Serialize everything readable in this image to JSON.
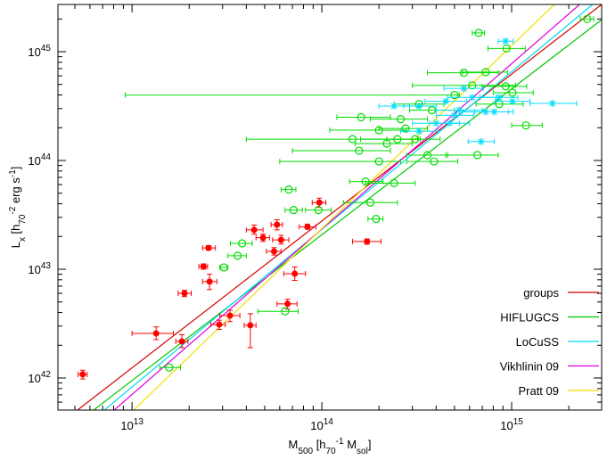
{
  "chart_data": {
    "type": "scatter",
    "x_label": [
      {
        "text": "M"
      },
      {
        "text": "500",
        "shift": "sub"
      },
      {
        "text": " [h"
      },
      {
        "text": "70",
        "shift": "sub"
      },
      {
        "text": "-1",
        "shift": "super"
      },
      {
        "text": " M"
      },
      {
        "text": "sol",
        "shift": "sub"
      },
      {
        "text": "]"
      }
    ],
    "y_label": [
      {
        "text": "L"
      },
      {
        "text": "x",
        "shift": "sub"
      },
      {
        "text": " [h"
      },
      {
        "text": "70",
        "shift": "sub"
      },
      {
        "text": "-2",
        "shift": "super"
      },
      {
        "text": " erg s"
      },
      {
        "text": "-1",
        "shift": "super"
      },
      {
        "text": "]"
      }
    ],
    "xlog": true,
    "ylog": true,
    "xlim": [
      4070000000000.0,
      2980000000000000.0
    ],
    "ylim": [
      5.07e+41,
      2.72e+45
    ],
    "xticks": [
      {
        "value": 10000000000000.0,
        "label": "10",
        "exponent": "13"
      },
      {
        "value": 100000000000000.0,
        "label": "10",
        "exponent": "14"
      },
      {
        "value": 1000000000000000.0,
        "label": "10",
        "exponent": "15"
      }
    ],
    "yticks": [
      {
        "value": 1e+42,
        "label": "10",
        "exponent": "42"
      },
      {
        "value": 1e+43,
        "label": "10",
        "exponent": "43"
      },
      {
        "value": 1e+44,
        "label": "10",
        "exponent": "44"
      },
      {
        "value": 1e+45,
        "label": "10",
        "exponent": "45"
      }
    ],
    "xminor_ticks": [
      5000000000000.0,
      6000000000000.0,
      7000000000000.0,
      8000000000000.0,
      9000000000000.0,
      20000000000000.0,
      30000000000000.0,
      40000000000000.0,
      50000000000000.0,
      60000000000000.0,
      70000000000000.0,
      80000000000000.0,
      90000000000000.0,
      200000000000000.0,
      300000000000000.0,
      400000000000000.0,
      500000000000000.0,
      600000000000000.0,
      700000000000000.0,
      800000000000000.0,
      900000000000000.0,
      2000000000000000.0
    ],
    "yminor_ticks": [
      6e+41,
      7e+41,
      8e+41,
      9e+41,
      2e+42,
      3e+42,
      4e+42,
      5e+42,
      6e+42,
      7e+42,
      8e+42,
      9e+42,
      2e+43,
      3e+43,
      4e+43,
      5e+43,
      6e+43,
      7e+43,
      8e+43,
      9e+43,
      2e+44,
      3e+44,
      4e+44,
      5e+44,
      6e+44,
      7e+44,
      8e+44,
      9e+44,
      2e+45
    ],
    "legend": "lower right",
    "samples": [
      {
        "color": "#ff0000",
        "marker": "filled-circle",
        "x": [
          5500000000000.0,
          13400000000000.0,
          18300000000000.0,
          18900000000000.0,
          23800000000000.0,
          25300000000000.0,
          25600000000000.0,
          28800000000000.0,
          32800000000000.0,
          42000000000000.0,
          44000000000000.0,
          49000000000000.0,
          56000000000000.0,
          58000000000000.0,
          61000000000000.0,
          66000000000000.0,
          72000000000000.0,
          97000000000000.0,
          173000000000000.0,
          84000000000000.0
        ],
        "values": [
          1.08e+42,
          2.57e+42,
          2.17e+42,
          6e+42,
          1.06e+43,
          1.57e+43,
          7.7e+42,
          3.1e+42,
          3.75e+42,
          3.05e+42,
          2.3e+43,
          1.95e+43,
          1.46e+43,
          2.57e+43,
          1.86e+43,
          4.8e+42,
          9.1e+42,
          4.1e+43,
          1.8e+43,
          2.45e+43
        ],
        "xerr": [
          [
            5200000000000.0,
            5800000000000.0
          ],
          [
            10000000000000.0,
            16500000000000.0
          ],
          [
            17000000000000.0,
            19700000000000.0
          ],
          [
            17500000000000.0,
            20500000000000.0
          ],
          [
            22500000000000.0,
            25000000000000.0
          ],
          [
            23500000000000.0,
            27500000000000.0
          ],
          [
            23500000000000.0,
            28000000000000.0
          ],
          [
            26000000000000.0,
            31000000000000.0
          ],
          [
            29000000000000.0,
            37000000000000.0
          ],
          [
            39000000000000.0,
            45000000000000.0
          ],
          [
            40000000000000.0,
            49000000000000.0
          ],
          [
            45000000000000.0,
            53000000000000.0
          ],
          [
            51000000000000.0,
            61000000000000.0
          ],
          [
            54000000000000.0,
            62000000000000.0
          ],
          [
            55000000000000.0,
            67000000000000.0
          ],
          [
            58000000000000.0,
            74000000000000.0
          ],
          [
            63000000000000.0,
            82000000000000.0
          ],
          [
            89000000000000.0,
            105000000000000.0
          ],
          [
            145000000000000.0,
            205000000000000.0
          ],
          [
            76000000000000.0,
            93000000000000.0
          ]
        ],
        "yerr": [
          [
            9.8e+41,
            1.18e+42
          ],
          [
            2.25e+42,
            2.95e+42
          ],
          [
            1.9e+42,
            2.5e+42
          ],
          [
            5.6e+42,
            6.4e+42
          ],
          [
            1e+43,
            1.12e+43
          ],
          [
            1.5e+43,
            1.65e+43
          ],
          [
            6.5e+42,
            9e+42
          ],
          [
            2.8e+42,
            3.4e+42
          ],
          [
            3.3e+42,
            4.2e+42
          ],
          [
            1.9e+42,
            3.9e+42
          ],
          [
            2.1e+43,
            2.55e+43
          ],
          [
            1.8e+43,
            2.1e+43
          ],
          [
            1.35e+43,
            1.58e+43
          ],
          [
            2.3e+43,
            2.85e+43
          ],
          [
            1.7e+43,
            2.05e+43
          ],
          [
            4.3e+42,
            5.3e+42
          ],
          [
            7.9e+42,
            1.05e+43
          ],
          [
            3.7e+43,
            4.5e+43
          ],
          [
            1.7e+43,
            1.9e+43
          ],
          [
            2.35e+43,
            2.6e+43
          ]
        ]
      },
      {
        "color": "#00dd00",
        "marker": "open-circle",
        "x": [
          670000000000000.0,
          2500000000000000.0,
          940000000000000.0,
          730000000000000.0,
          560000000000000.0,
          620000000000000.0,
          930000000000000.0,
          1010000000000000.0,
          500000000000000.0,
          860000000000000.0,
          1190000000000000.0,
          325000000000000.0,
          161000000000000.0,
          145000000000000.0,
          200000000000000.0,
          276000000000000.0,
          220000000000000.0,
          250000000000000.0,
          310000000000000.0,
          360000000000000.0,
          660000000000000.0,
          157000000000000.0,
          200000000000000.0,
          390000000000000.0,
          240000000000000.0,
          170000000000000.0,
          67000000000000.0,
          71000000000000.0,
          96000000000000.0,
          180000000000000.0,
          193000000000000.0,
          38000000000000.0,
          36000000000000.0,
          30500000000000.0,
          64000000000000.0,
          15700000000000.0,
          260000000000000.0,
          380000000000000.0
        ],
        "values": [
          1.49e+45,
          2e+45,
          1.07e+45,
          6.5e+44,
          6.4e+44,
          4.9e+44,
          4.8e+44,
          4.2e+44,
          4e+44,
          3.3e+44,
          2.1e+44,
          3.3e+44,
          2.5e+44,
          1.57e+44,
          1.9e+44,
          1.97e+44,
          1.43e+44,
          1.57e+44,
          1.57e+44,
          1.12e+44,
          1.12e+44,
          1.23e+44,
          9.8e+43,
          9.8e+43,
          6.2e+43,
          6.4e+43,
          5.4e+43,
          3.5e+43,
          3.5e+43,
          4.1e+43,
          2.9e+43,
          1.73e+43,
          1.33e+43,
          1.04e+43,
          4.1e+42,
          1.25e+42,
          2.4e+44,
          2.9e+44
        ],
        "xerr": [
          [
            620000000000000.0,
            720000000000000.0
          ],
          [
            2300000000000000.0,
            2700000000000000.0
          ],
          [
            750000000000000.0,
            1180000000000000.0
          ],
          [
            550000000000000.0,
            950000000000000.0
          ],
          [
            360000000000000.0,
            850000000000000.0
          ],
          [
            300000000000000.0,
            1050000000000000.0
          ],
          [
            700000000000000.0,
            1200000000000000.0
          ],
          [
            800000000000000.0,
            1300000000000000.0
          ],
          [
            9200000000000.0,
            530000000000000.0
          ],
          [
            650000000000000.0,
            1150000000000000.0
          ],
          [
            1000000000000000.0,
            1450000000000000.0
          ],
          [
            240000000000000.0,
            440000000000000.0
          ],
          [
            120000000000000.0,
            230000000000000.0
          ],
          [
            40000000000000.0,
            320000000000000.0
          ],
          [
            110000000000000.0,
            280000000000000.0
          ],
          [
            200000000000000.0,
            360000000000000.0
          ],
          [
            150000000000000.0,
            300000000000000.0
          ],
          [
            160000000000000.0,
            330000000000000.0
          ],
          [
            220000000000000.0,
            420000000000000.0
          ],
          [
            280000000000000.0,
            460000000000000.0
          ],
          [
            450000000000000.0,
            850000000000000.0
          ],
          [
            70000000000000.0,
            230000000000000.0
          ],
          [
            60000000000000.0,
            260000000000000.0
          ],
          [
            280000000000000.0,
            520000000000000.0
          ],
          [
            170000000000000.0,
            310000000000000.0
          ],
          [
            140000000000000.0,
            210000000000000.0
          ],
          [
            61000000000000.0,
            73000000000000.0
          ],
          [
            64000000000000.0,
            79000000000000.0
          ],
          [
            82000000000000.0,
            112000000000000.0
          ],
          [
            130000000000000.0,
            250000000000000.0
          ],
          [
            175000000000000.0,
            210000000000000.0
          ],
          [
            33000000000000.0,
            43000000000000.0
          ],
          [
            32000000000000.0,
            40000000000000.0
          ],
          [
            29000000000000.0,
            32000000000000.0
          ],
          [
            46000000000000.0,
            75000000000000.0
          ],
          [
            14000000000000.0,
            18000000000000.0
          ],
          [
            180000000000000.0,
            360000000000000.0
          ],
          [
            290000000000000.0,
            500000000000000.0
          ]
        ]
      },
      {
        "color": "#00dcff",
        "marker": "star",
        "x": [
          930000000000000.0,
          240000000000000.0,
          325000000000000.0,
          450000000000000.0,
          530000000000000.0,
          620000000000000.0,
          730000000000000.0,
          860000000000000.0,
          1640000000000000.0,
          690000000000000.0,
          400000000000000.0,
          470000000000000.0,
          560000000000000.0,
          810000000000000.0,
          1010000000000000.0,
          325000000000000.0,
          500000000000000.0
        ],
        "values": [
          1.25e+45,
          3.16e+44,
          3.16e+44,
          3.5e+44,
          2.9e+44,
          3.8e+44,
          2.8e+44,
          3.8e+44,
          3.35e+44,
          1.49e+44,
          2.2e+44,
          2.2e+44,
          4.6e+44,
          2.8e+44,
          3.5e+44,
          1.86e+44,
          2.6e+44
        ],
        "xerr": [
          [
            850000000000000.0,
            1020000000000000.0
          ],
          [
            200000000000000.0,
            290000000000000.0
          ],
          [
            270000000000000.0,
            400000000000000.0
          ],
          [
            350000000000000.0,
            580000000000000.0
          ],
          [
            400000000000000.0,
            700000000000000.0
          ],
          [
            460000000000000.0,
            830000000000000.0
          ],
          [
            550000000000000.0,
            960000000000000.0
          ],
          [
            680000000000000.0,
            1080000000000000.0
          ],
          [
            1250000000000000.0,
            2200000000000000.0
          ],
          [
            590000000000000.0,
            810000000000000.0
          ],
          [
            300000000000000.0,
            530000000000000.0
          ],
          [
            370000000000000.0,
            600000000000000.0
          ],
          [
            440000000000000.0,
            710000000000000.0
          ],
          [
            640000000000000.0,
            1020000000000000.0
          ],
          [
            820000000000000.0,
            1250000000000000.0
          ],
          [
            260000000000000.0,
            410000000000000.0
          ],
          [
            400000000000000.0,
            630000000000000.0
          ]
        ]
      }
    ],
    "series": [
      {
        "name": "groups",
        "color": "#d40000",
        "x": [
          5160000000000.0,
          2980000000000000.0
        ],
        "values": [
          5.07e+41,
          2.72e+45
        ]
      },
      {
        "name": "HIFLUGCS",
        "color": "#00c800",
        "x": [
          6280000000000.0,
          2980000000000000.0
        ],
        "values": [
          5.07e+41,
          1.97e+45
        ]
      },
      {
        "name": "LoCuSS",
        "color": "#00dcf0",
        "x": [
          7140000000000.0,
          2670000000000000.0
        ],
        "values": [
          5.07e+41,
          2.72e+45
        ]
      },
      {
        "name": "Vikhlinin 09",
        "color": "#e000e0",
        "x": [
          8050000000000.0,
          2280000000000000.0
        ],
        "values": [
          5.07e+41,
          2.72e+45
        ]
      },
      {
        "name": "Pratt 09",
        "color": "#f0e000",
        "x": [
          10200000000000.0,
          1680000000000000.0
        ],
        "values": [
          5.07e+41,
          2.72e+45
        ]
      }
    ]
  }
}
